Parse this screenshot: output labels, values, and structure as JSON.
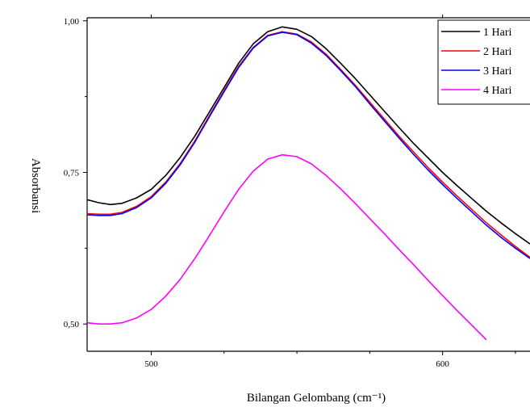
{
  "chart_data": {
    "type": "line",
    "title": "",
    "xlabel": "Bilangan Gelombang (cm⁻¹)",
    "ylabel": "Absorbansi",
    "xlim": [
      478,
      630
    ],
    "ylim": [
      0.455,
      1.005
    ],
    "x_ticks": [
      {
        "value": 500,
        "label": "500"
      },
      {
        "value": 600,
        "label": "600"
      }
    ],
    "y_ticks": [
      {
        "value": 0.5,
        "label": "0,50"
      },
      {
        "value": 0.75,
        "label": "0,75"
      },
      {
        "value": 1.0,
        "label": "1,00"
      }
    ],
    "grid": false,
    "legend_position": "top-right",
    "series": [
      {
        "name": "1 Hari",
        "color": "#000000",
        "x": [
          478,
          482,
          486,
          490,
          495,
          500,
          505,
          510,
          515,
          520,
          525,
          530,
          535,
          540,
          545,
          550,
          555,
          560,
          565,
          570,
          575,
          580,
          585,
          590,
          595,
          600,
          605,
          610,
          615,
          620,
          625,
          630
        ],
        "y": [
          0.705,
          0.7,
          0.697,
          0.699,
          0.708,
          0.722,
          0.745,
          0.775,
          0.81,
          0.85,
          0.89,
          0.93,
          0.962,
          0.982,
          0.99,
          0.986,
          0.974,
          0.954,
          0.93,
          0.905,
          0.878,
          0.851,
          0.824,
          0.798,
          0.774,
          0.75,
          0.728,
          0.707,
          0.686,
          0.667,
          0.649,
          0.632
        ]
      },
      {
        "name": "2 Hari",
        "color": "#ff0000",
        "x": [
          478,
          482,
          486,
          490,
          495,
          500,
          505,
          510,
          515,
          520,
          525,
          530,
          535,
          540,
          545,
          550,
          555,
          560,
          565,
          570,
          575,
          580,
          585,
          590,
          595,
          600,
          605,
          610,
          615,
          620,
          625,
          630
        ],
        "y": [
          0.682,
          0.681,
          0.681,
          0.684,
          0.694,
          0.71,
          0.734,
          0.765,
          0.802,
          0.844,
          0.885,
          0.925,
          0.956,
          0.976,
          0.982,
          0.978,
          0.965,
          0.945,
          0.92,
          0.894,
          0.866,
          0.838,
          0.81,
          0.784,
          0.758,
          0.734,
          0.711,
          0.689,
          0.667,
          0.647,
          0.628,
          0.61
        ]
      },
      {
        "name": "3 Hari",
        "color": "#0000ff",
        "x": [
          478,
          482,
          486,
          490,
          495,
          500,
          505,
          510,
          515,
          520,
          525,
          530,
          535,
          540,
          545,
          550,
          555,
          560,
          565,
          570,
          575,
          580,
          585,
          590,
          595,
          600,
          605,
          610,
          615,
          620,
          625,
          630
        ],
        "y": [
          0.68,
          0.679,
          0.679,
          0.682,
          0.692,
          0.708,
          0.732,
          0.763,
          0.8,
          0.842,
          0.883,
          0.923,
          0.955,
          0.975,
          0.981,
          0.977,
          0.963,
          0.943,
          0.918,
          0.892,
          0.863,
          0.835,
          0.807,
          0.78,
          0.754,
          0.73,
          0.707,
          0.685,
          0.663,
          0.643,
          0.625,
          0.608
        ]
      },
      {
        "name": "4 Hari",
        "color": "#ff00ff",
        "x": [
          478,
          482,
          486,
          490,
          495,
          500,
          505,
          510,
          515,
          520,
          525,
          530,
          535,
          540,
          545,
          550,
          555,
          560,
          565,
          570,
          575,
          580,
          585,
          590,
          595,
          600,
          605,
          610,
          615
        ],
        "y": [
          0.502,
          0.5,
          0.5,
          0.502,
          0.51,
          0.524,
          0.546,
          0.574,
          0.608,
          0.646,
          0.685,
          0.722,
          0.752,
          0.772,
          0.779,
          0.776,
          0.764,
          0.745,
          0.723,
          0.699,
          0.674,
          0.649,
          0.623,
          0.598,
          0.572,
          0.547,
          0.522,
          0.498,
          0.474
        ]
      }
    ]
  }
}
